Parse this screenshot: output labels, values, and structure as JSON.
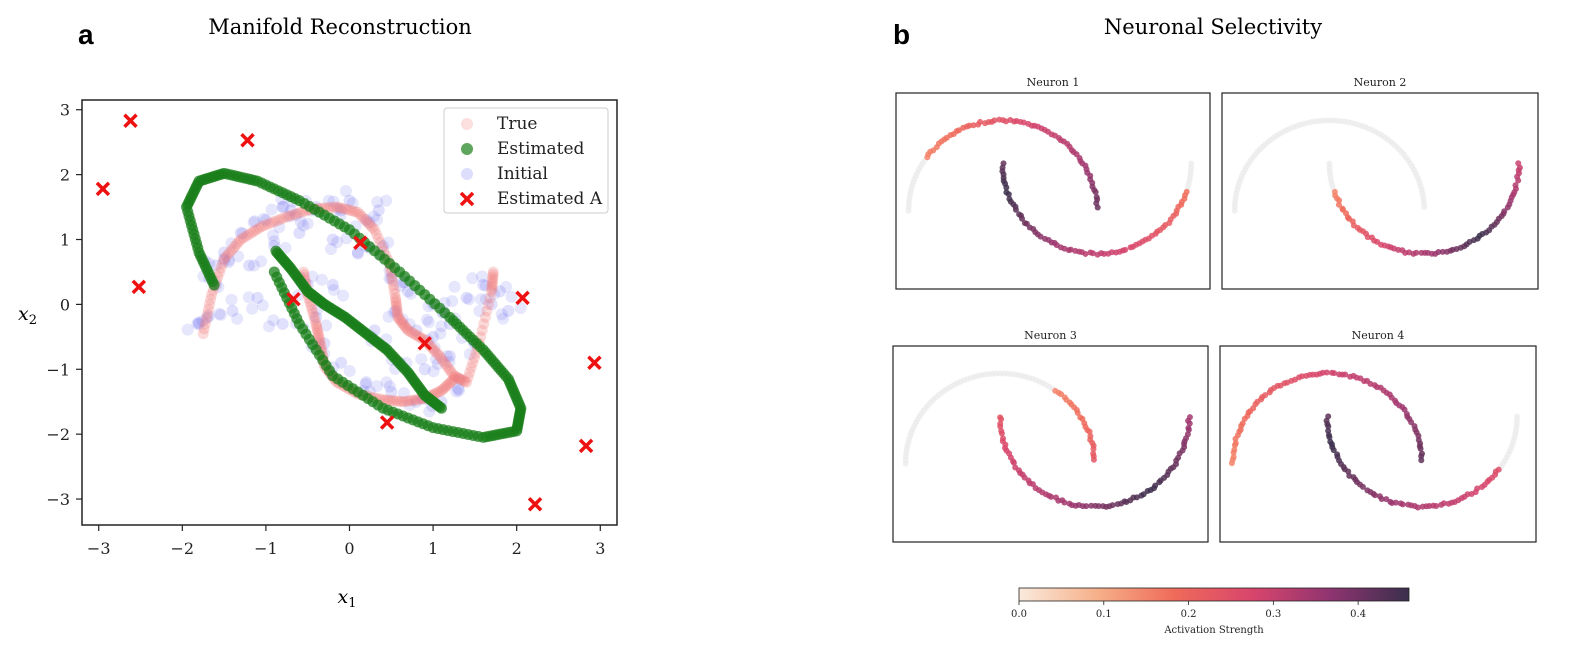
{
  "figure": {
    "panel_a_letter": "a",
    "panel_b_letter": "b",
    "colors": {
      "true": "#f07a7a",
      "estimated": "#1a7f1a",
      "initial": "#5555ee",
      "estimated_a": "#ee1111",
      "inactive": "#e9e9e9"
    }
  },
  "chart_data": [
    {
      "type": "scatter",
      "title": "Manifold Reconstruction",
      "xlabel": "x1",
      "ylabel": "x2",
      "xlim": [
        -3.2,
        3.2
      ],
      "ylim": [
        -3.4,
        3.15
      ],
      "xticks": [
        -3,
        -2,
        -1,
        0,
        1,
        2,
        3
      ],
      "yticks": [
        -3,
        -2,
        -1,
        0,
        1,
        2,
        3
      ],
      "xtick_labels": [
        "−3",
        "−2",
        "−1",
        "0",
        "1",
        "2",
        "3"
      ],
      "ytick_labels": [
        "−3",
        "−2",
        "−1",
        "0",
        "1",
        "2",
        "3"
      ],
      "legend": {
        "location": "top-right",
        "entries": [
          "True",
          "Estimated",
          "Initial",
          "Estimated A"
        ]
      },
      "series": [
        {
          "name": "True",
          "kind": "curve",
          "points": [
            [
              -1.75,
              -0.45
            ],
            [
              -1.65,
              0.15
            ],
            [
              -1.5,
              0.7
            ],
            [
              -1.3,
              1.0
            ],
            [
              -1.05,
              1.2
            ],
            [
              -0.75,
              1.35
            ],
            [
              -0.45,
              1.47
            ],
            [
              -0.15,
              1.5
            ],
            [
              0.1,
              1.42
            ],
            [
              0.3,
              1.15
            ],
            [
              0.48,
              0.62
            ],
            [
              0.55,
              0.1
            ],
            [
              0.58,
              -0.2
            ],
            [
              0.7,
              -0.4
            ],
            [
              0.9,
              -0.55
            ],
            [
              1.08,
              -0.8
            ],
            [
              1.25,
              -1.1
            ],
            [
              1.4,
              -1.2
            ],
            [
              1.55,
              -0.6
            ],
            [
              1.7,
              0.2
            ],
            [
              1.72,
              0.5
            ]
          ]
        },
        {
          "name": "True (second arc)",
          "kind": "curve",
          "points": [
            [
              -0.55,
              0.5
            ],
            [
              -0.5,
              0.15
            ],
            [
              -0.4,
              -0.3
            ],
            [
              -0.35,
              -0.6
            ],
            [
              -0.3,
              -0.95
            ],
            [
              -0.15,
              -1.2
            ],
            [
              0.1,
              -1.38
            ],
            [
              0.4,
              -1.47
            ],
            [
              0.65,
              -1.5
            ],
            [
              0.9,
              -1.45
            ],
            [
              1.1,
              -1.33
            ],
            [
              1.25,
              -1.15
            ]
          ]
        },
        {
          "name": "Estimated",
          "kind": "ellipse",
          "center": [
            0.0,
            0.0
          ],
          "points": [
            [
              -1.62,
              0.3
            ],
            [
              -1.8,
              0.8
            ],
            [
              -1.95,
              1.5
            ],
            [
              -1.8,
              1.9
            ],
            [
              -1.5,
              2.02
            ],
            [
              -1.1,
              1.9
            ],
            [
              -0.6,
              1.6
            ],
            [
              0.0,
              1.15
            ],
            [
              0.6,
              0.5
            ],
            [
              1.2,
              -0.2
            ],
            [
              1.6,
              -0.7
            ],
            [
              1.9,
              -1.15
            ],
            [
              2.05,
              -1.6
            ],
            [
              2.0,
              -1.95
            ],
            [
              1.6,
              -2.05
            ],
            [
              1.0,
              -1.9
            ],
            [
              0.4,
              -1.6
            ],
            [
              -0.2,
              -1.1
            ],
            [
              -0.6,
              -0.3
            ],
            [
              -0.9,
              0.5
            ]
          ]
        },
        {
          "name": "Estimated (inner branch)",
          "kind": "curve",
          "points": [
            [
              -0.88,
              0.82
            ],
            [
              -0.7,
              0.55
            ],
            [
              -0.5,
              0.2
            ],
            [
              -0.3,
              0.0
            ],
            [
              -0.05,
              -0.2
            ],
            [
              0.2,
              -0.45
            ],
            [
              0.45,
              -0.7
            ],
            [
              0.7,
              -1.05
            ],
            [
              0.9,
              -1.4
            ],
            [
              1.1,
              -1.6
            ]
          ]
        },
        {
          "name": "Initial",
          "kind": "scatter",
          "points": [
            [
              -1.8,
              -0.3
            ],
            [
              -1.6,
              0.3
            ],
            [
              -1.5,
              0.8
            ],
            [
              -1.3,
              1.1
            ],
            [
              -1.0,
              1.3
            ],
            [
              -0.7,
              1.45
            ],
            [
              -0.4,
              1.5
            ],
            [
              -0.1,
              1.45
            ],
            [
              0.2,
              1.3
            ],
            [
              0.4,
              0.9
            ],
            [
              0.5,
              0.4
            ],
            [
              0.55,
              -0.1
            ],
            [
              0.8,
              -0.4
            ],
            [
              1.0,
              -0.5
            ],
            [
              1.2,
              -0.3
            ],
            [
              1.4,
              0.1
            ],
            [
              1.6,
              0.3
            ],
            [
              1.8,
              0.2
            ],
            [
              -0.5,
              0.3
            ],
            [
              -0.4,
              -0.2
            ],
            [
              -0.3,
              -0.6
            ],
            [
              -0.1,
              -0.9
            ],
            [
              0.2,
              -1.2
            ],
            [
              0.5,
              -1.35
            ],
            [
              0.8,
              -1.5
            ],
            [
              1.1,
              -1.5
            ],
            [
              1.3,
              -1.3
            ],
            [
              -1.2,
              0.6
            ],
            [
              -0.9,
              0.9
            ],
            [
              -0.6,
              1.1
            ],
            [
              -0.2,
              1.0
            ],
            [
              0.1,
              0.8
            ],
            [
              -1.4,
              -0.1
            ],
            [
              -1.1,
              0.1
            ],
            [
              -0.8,
              -0.3
            ],
            [
              0.7,
              0.2
            ],
            [
              1.0,
              0.0
            ],
            [
              1.2,
              -0.8
            ],
            [
              1.5,
              -0.6
            ],
            [
              0.3,
              -0.4
            ],
            [
              -0.2,
              0.3
            ],
            [
              0.6,
              -0.9
            ],
            [
              0.9,
              -1.0
            ],
            [
              1.7,
              0.0
            ],
            [
              1.9,
              -0.1
            ],
            [
              -1.6,
              0.6
            ],
            [
              -1.7,
              -0.2
            ],
            [
              -0.8,
              1.5
            ],
            [
              0.0,
              1.6
            ],
            [
              0.35,
              1.45
            ]
          ]
        },
        {
          "name": "Estimated A",
          "kind": "markers",
          "points": [
            [
              -2.95,
              1.78
            ],
            [
              -2.62,
              2.83
            ],
            [
              -1.22,
              2.53
            ],
            [
              -2.52,
              0.27
            ],
            [
              0.13,
              0.95
            ],
            [
              -0.67,
              0.08
            ],
            [
              0.9,
              -0.6
            ],
            [
              0.45,
              -1.82
            ],
            [
              2.07,
              0.1
            ],
            [
              2.93,
              -0.9
            ],
            [
              2.83,
              -2.18
            ],
            [
              2.22,
              -3.08
            ]
          ]
        }
      ]
    },
    {
      "type": "scatter",
      "title": "Neuronal Selectivity",
      "subplots": [
        {
          "title": "Neuron 1",
          "active_range": [
            0.1,
            0.95
          ],
          "peak": 0.55
        },
        {
          "title": "Neuron 2",
          "active_range": [
            0.55,
            1.0
          ],
          "peak": 0.85
        },
        {
          "title": "Neuron 3",
          "active_range": [
            0.35,
            1.0
          ],
          "peak": 0.85
        },
        {
          "title": "Neuron 4",
          "active_range": [
            0.0,
            0.9
          ],
          "peak": 0.55
        }
      ],
      "colorbar": {
        "label": "Activation Strength",
        "range": [
          0.0,
          0.46
        ],
        "ticks": [
          0.0,
          0.1,
          0.2,
          0.3,
          0.4
        ],
        "tick_labels": [
          "0.0",
          "0.1",
          "0.2",
          "0.3",
          "0.4"
        ],
        "colors": [
          "#faeadc",
          "#f6a07a",
          "#ef6a5a",
          "#d8456c",
          "#a13770",
          "#3a2f4c"
        ]
      }
    }
  ]
}
